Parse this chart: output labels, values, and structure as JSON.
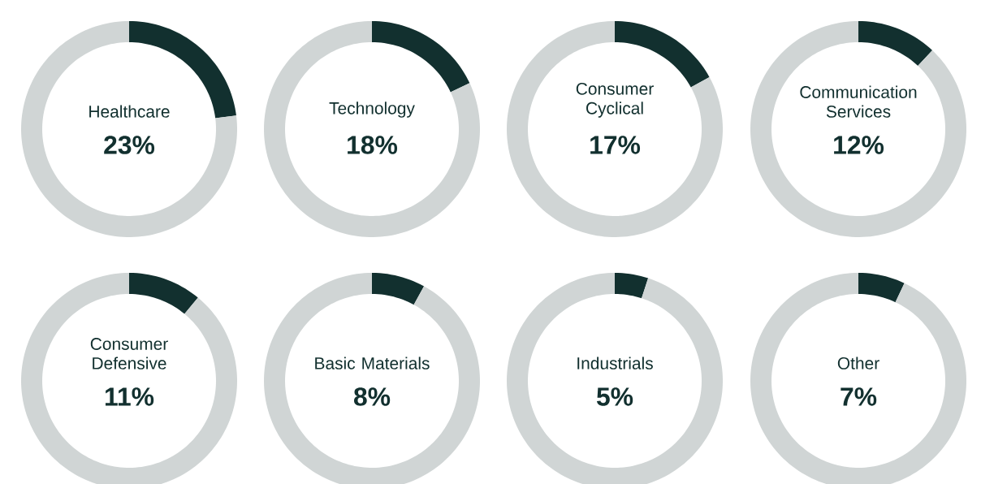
{
  "chart_data": [
    {
      "type": "donut",
      "title": "Healthcare",
      "categories": [
        null,
        null
      ],
      "values": [
        23,
        77
      ],
      "colors": [
        "#12302f",
        "#d0d5d5"
      ],
      "annotations": [
        "23%"
      ]
    },
    {
      "type": "donut",
      "title": "Technology",
      "categories": [
        null,
        null
      ],
      "values": [
        18,
        82
      ],
      "colors": [
        "#12302f",
        "#d0d5d5"
      ],
      "annotations": [
        "18%"
      ]
    },
    {
      "type": "donut",
      "title": "Consumer Cyclical",
      "categories": [
        null,
        null
      ],
      "values": [
        17,
        83
      ],
      "colors": [
        "#12302f",
        "#d0d5d5"
      ],
      "annotations": [
        "17%"
      ]
    },
    {
      "type": "donut",
      "title": "Communication Services",
      "categories": [
        null,
        null
      ],
      "values": [
        12,
        88
      ],
      "colors": [
        "#12302f",
        "#d0d5d5"
      ],
      "annotations": [
        "12%"
      ]
    },
    {
      "type": "donut",
      "title": "Consumer Defensive",
      "categories": [
        null,
        null
      ],
      "values": [
        11,
        89
      ],
      "colors": [
        "#12302f",
        "#d0d5d5"
      ],
      "annotations": [
        "11%"
      ]
    },
    {
      "type": "donut",
      "title": "Basic Materials",
      "categories": [
        null,
        null
      ],
      "values": [
        8,
        92
      ],
      "colors": [
        "#12302f",
        "#d0d5d5"
      ],
      "annotations": [
        "8%"
      ]
    },
    {
      "type": "donut",
      "title": "Industrials",
      "categories": [
        null,
        null
      ],
      "values": [
        5,
        95
      ],
      "colors": [
        "#12302f",
        "#d0d5d5"
      ],
      "annotations": [
        "5%"
      ]
    },
    {
      "type": "donut",
      "title": "Other",
      "categories": [
        null,
        null
      ],
      "values": [
        7,
        93
      ],
      "colors": [
        "#12302f",
        "#d0d5d5"
      ],
      "annotations": [
        "7%"
      ]
    }
  ]
}
